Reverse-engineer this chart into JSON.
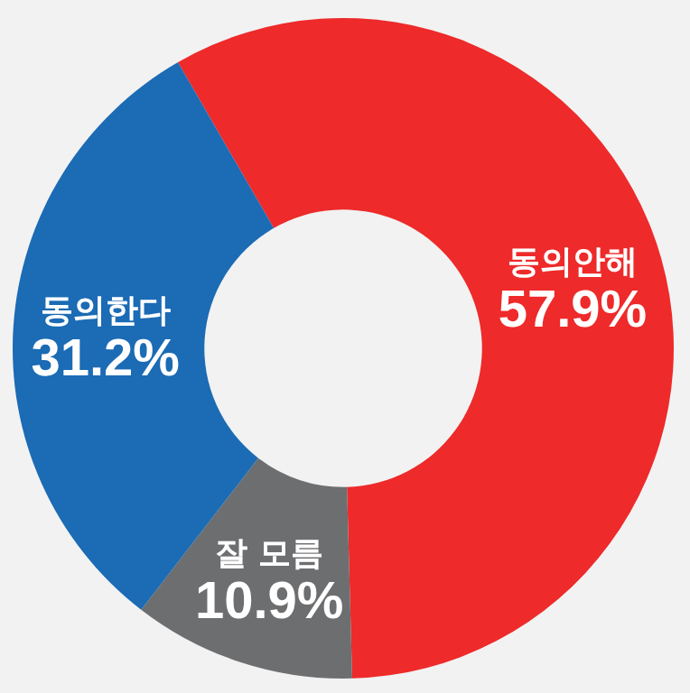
{
  "chart_data": {
    "type": "donut",
    "categories": [
      "동의안해",
      "잘 모름",
      "동의한다"
    ],
    "values": [
      57.9,
      10.9,
      31.2
    ],
    "colors": [
      "#ee2a2a",
      "#6d6e70",
      "#1b6bb5"
    ],
    "value_labels": [
      "57.9%",
      "10.9%",
      "31.2%"
    ]
  }
}
